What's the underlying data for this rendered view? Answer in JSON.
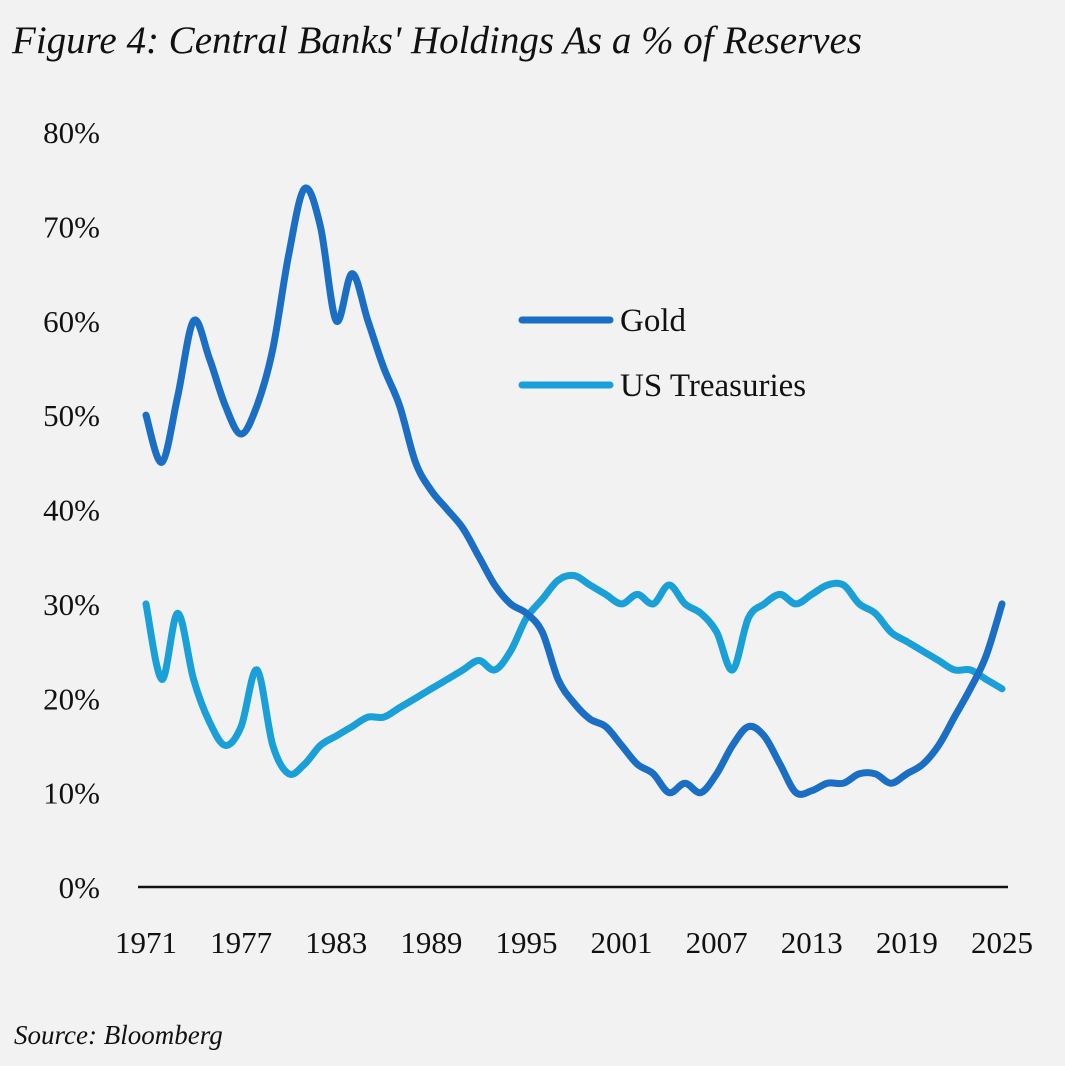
{
  "title": "Figure 4: Central Banks' Holdings As a % of Reserves",
  "source": "Source: Bloomberg",
  "colors": {
    "background": "#f2f2f2",
    "gold": "#1a6fc4",
    "treasuries": "#1aa0d8",
    "axis": "#111111"
  },
  "chart_data": {
    "type": "line",
    "title": "Figure 4: Central Banks' Holdings As a % of Reserves",
    "xlabel": "",
    "ylabel": "",
    "xlim": [
      1971,
      2025
    ],
    "ylim": [
      0,
      80
    ],
    "x_ticks": [
      1971,
      1977,
      1983,
      1989,
      1995,
      2001,
      2007,
      2013,
      2019,
      2025
    ],
    "x_tick_labels": [
      "1971",
      "1977",
      "1983",
      "1989",
      "1995",
      "2001",
      "2007",
      "2013",
      "2019",
      "2025"
    ],
    "y_ticks": [
      0,
      10,
      20,
      30,
      40,
      50,
      60,
      70,
      80
    ],
    "y_tick_labels": [
      "0%",
      "10%",
      "20%",
      "30%",
      "40%",
      "50%",
      "60%",
      "70%",
      "80%"
    ],
    "grid": false,
    "legend_position": "top-center",
    "series": [
      {
        "name": "Gold",
        "color": "#1a6fc4",
        "x": [
          1971,
          1972,
          1973,
          1974,
          1975,
          1976,
          1977,
          1978,
          1979,
          1980,
          1981,
          1982,
          1983,
          1984,
          1985,
          1986,
          1987,
          1988,
          1989,
          1990,
          1991,
          1992,
          1993,
          1994,
          1995,
          1996,
          1997,
          1998,
          1999,
          2000,
          2001,
          2002,
          2003,
          2004,
          2005,
          2006,
          2007,
          2008,
          2009,
          2010,
          2011,
          2012,
          2013,
          2014,
          2015,
          2016,
          2017,
          2018,
          2019,
          2020,
          2021,
          2022,
          2023,
          2024,
          2025
        ],
        "y": [
          50,
          45,
          52,
          60,
          56,
          51,
          48,
          51,
          57,
          67,
          74,
          70,
          60,
          65,
          60,
          55,
          51,
          45,
          42,
          40,
          38,
          35,
          32,
          30,
          29,
          27,
          22,
          19.5,
          17.8,
          17,
          15,
          13,
          12,
          10,
          11,
          10,
          12,
          15,
          17,
          16,
          13,
          10,
          10.2,
          11,
          11,
          12,
          12,
          11,
          12,
          13,
          15,
          18,
          21,
          24.5,
          30
        ]
      },
      {
        "name": "US Treasuries",
        "color": "#1aa0d8",
        "x": [
          1971,
          1972,
          1973,
          1974,
          1975,
          1976,
          1977,
          1978,
          1979,
          1980,
          1981,
          1982,
          1983,
          1984,
          1985,
          1986,
          1987,
          1988,
          1989,
          1990,
          1991,
          1992,
          1993,
          1994,
          1995,
          1996,
          1997,
          1998,
          1999,
          2000,
          2001,
          2002,
          2003,
          2004,
          2005,
          2006,
          2007,
          2008,
          2009,
          2010,
          2011,
          2012,
          2013,
          2014,
          2015,
          2016,
          2017,
          2018,
          2019,
          2020,
          2021,
          2022,
          2023,
          2024,
          2025
        ],
        "y": [
          30,
          22,
          29,
          22,
          17.5,
          15,
          17,
          23,
          15,
          12,
          13,
          15,
          16,
          17,
          18,
          18,
          19,
          20,
          21,
          22,
          23,
          24,
          23,
          25,
          28.5,
          30.5,
          32.5,
          33,
          32,
          31,
          30,
          31,
          30,
          32,
          30,
          29,
          27,
          23,
          28.5,
          30,
          31,
          30,
          31,
          32,
          32,
          30,
          29,
          27,
          26,
          25,
          24,
          23,
          23,
          22,
          21
        ]
      }
    ]
  }
}
